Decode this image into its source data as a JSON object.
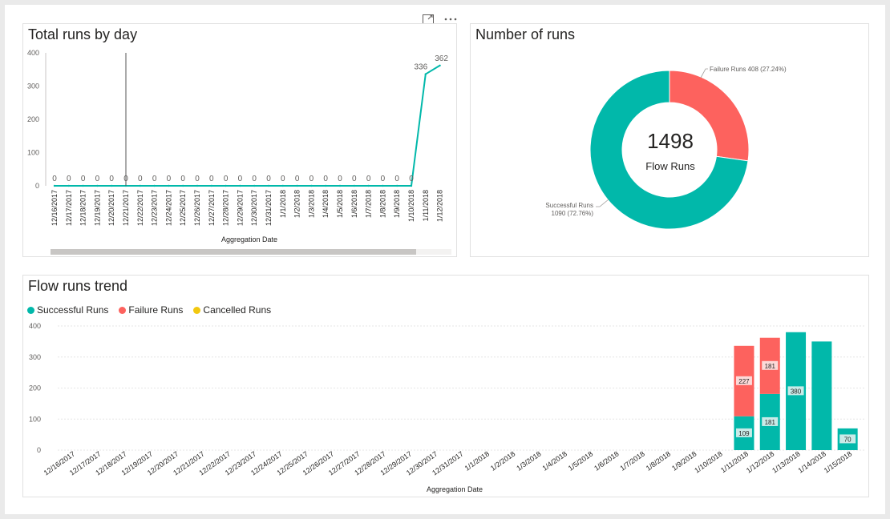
{
  "colors": {
    "successful": "#01b8aa",
    "failure": "#fd625e",
    "cancelled": "#f2c80f",
    "line": "#01b8aa"
  },
  "toolbar": {
    "focus_icon": "focus-mode-icon",
    "more_icon": "more-options-icon"
  },
  "chart_data": [
    {
      "id": "total-runs-by-day",
      "type": "line",
      "title": "Total runs by day",
      "xlabel": "Aggregation Date",
      "ylabel": "",
      "ylim": [
        0,
        400
      ],
      "yticks": [
        "400",
        "300",
        "200",
        "100",
        "0"
      ],
      "categories": [
        "12/16/2017",
        "12/17/2017",
        "12/18/2017",
        "12/19/2017",
        "12/20/2017",
        "12/21/2017",
        "12/22/2017",
        "12/23/2017",
        "12/24/2017",
        "12/25/2017",
        "12/26/2017",
        "12/27/2017",
        "12/28/2017",
        "12/29/2017",
        "12/30/2017",
        "12/31/2017",
        "1/1/2018",
        "1/2/2018",
        "1/3/2018",
        "1/4/2018",
        "1/5/2018",
        "1/6/2018",
        "1/7/2018",
        "1/8/2018",
        "1/9/2018",
        "1/10/2018",
        "1/11/2018",
        "1/12/2018"
      ],
      "values": [
        0,
        0,
        0,
        0,
        0,
        0,
        0,
        0,
        0,
        0,
        0,
        0,
        0,
        0,
        0,
        0,
        0,
        0,
        0,
        0,
        0,
        0,
        0,
        0,
        0,
        0,
        336,
        362
      ],
      "labels": [
        "0",
        "0",
        "0",
        "0",
        "0",
        "0",
        "0",
        "0",
        "0",
        "0",
        "0",
        "0",
        "0",
        "0",
        "0",
        "0",
        "0",
        "0",
        "0",
        "0",
        "0",
        "0",
        "0",
        "0",
        "0",
        "0",
        "336",
        "362"
      ],
      "grid": false
    },
    {
      "id": "number-of-runs",
      "type": "pie",
      "title": "Number of runs",
      "center_value": "1498",
      "center_label": "Flow Runs",
      "slices": [
        {
          "name": "Failure Runs",
          "value": 408,
          "label": "Failure Runs 408 (27.24%)"
        },
        {
          "name": "Successful Runs",
          "value": 1090,
          "label_line1": "Successful Runs",
          "label_line2": "1090 (72.76%)"
        }
      ]
    },
    {
      "id": "flow-runs-trend",
      "type": "bar",
      "stacked": true,
      "title": "Flow runs trend",
      "xlabel": "Aggregation Date",
      "ylabel": "",
      "ylim": [
        0,
        400
      ],
      "yticks": [
        "400",
        "300",
        "200",
        "100",
        "0"
      ],
      "legend": [
        "Successful Runs",
        "Failure Runs",
        "Cancelled Runs"
      ],
      "legend_position": "top-left",
      "grid": true,
      "categories": [
        "12/16/2017",
        "12/17/2017",
        "12/18/2017",
        "12/19/2017",
        "12/20/2017",
        "12/21/2017",
        "12/22/2017",
        "12/23/2017",
        "12/24/2017",
        "12/25/2017",
        "12/26/2017",
        "12/27/2017",
        "12/28/2017",
        "12/29/2017",
        "12/30/2017",
        "12/31/2017",
        "1/1/2018",
        "1/2/2018",
        "1/3/2018",
        "1/4/2018",
        "1/5/2018",
        "1/6/2018",
        "1/7/2018",
        "1/8/2018",
        "1/9/2018",
        "1/10/2018",
        "1/11/2018",
        "1/12/2018",
        "1/13/2018",
        "1/14/2018",
        "1/15/2018"
      ],
      "series": [
        {
          "name": "Successful Runs",
          "values": [
            0,
            0,
            0,
            0,
            0,
            0,
            0,
            0,
            0,
            0,
            0,
            0,
            0,
            0,
            0,
            0,
            0,
            0,
            0,
            0,
            0,
            0,
            0,
            0,
            0,
            0,
            109,
            181,
            380,
            350,
            70
          ],
          "labels": [
            "",
            "",
            "",
            "",
            "",
            "",
            "",
            "",
            "",
            "",
            "",
            "",
            "",
            "",
            "",
            "",
            "",
            "",
            "",
            "",
            "",
            "",
            "",
            "",
            "",
            "",
            "109",
            "181",
            "380",
            "",
            "70"
          ]
        },
        {
          "name": "Failure Runs",
          "values": [
            0,
            0,
            0,
            0,
            0,
            0,
            0,
            0,
            0,
            0,
            0,
            0,
            0,
            0,
            0,
            0,
            0,
            0,
            0,
            0,
            0,
            0,
            0,
            0,
            0,
            0,
            227,
            181,
            0,
            0,
            0
          ],
          "labels": [
            "",
            "",
            "",
            "",
            "",
            "",
            "",
            "",
            "",
            "",
            "",
            "",
            "",
            "",
            "",
            "",
            "",
            "",
            "",
            "",
            "",
            "",
            "",
            "",
            "",
            "",
            "227",
            "181",
            "",
            "",
            ""
          ]
        },
        {
          "name": "Cancelled Runs",
          "values": [
            0,
            0,
            0,
            0,
            0,
            0,
            0,
            0,
            0,
            0,
            0,
            0,
            0,
            0,
            0,
            0,
            0,
            0,
            0,
            0,
            0,
            0,
            0,
            0,
            0,
            0,
            0,
            0,
            0,
            0,
            0
          ],
          "labels": []
        }
      ]
    }
  ]
}
